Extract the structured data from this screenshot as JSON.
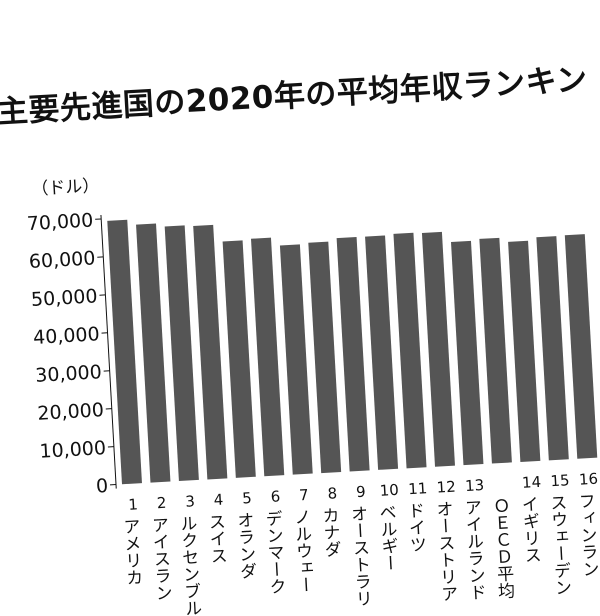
{
  "title": "主要先進国の2020年の平均年収ランキン",
  "unit_label": "（ドル）",
  "chart_data": {
    "type": "bar",
    "title": "主要先進国の2020年の平均年収ランキン",
    "ylabel": "（ドル）",
    "ylim": [
      0,
      70000
    ],
    "yticks": [
      "70,000",
      "60,000",
      "50,000",
      "40,000",
      "30,000",
      "20,000",
      "10,000",
      "0"
    ],
    "grid": false,
    "bar_color": "#555555",
    "categories": [
      {
        "rank": "1",
        "name": "アメリカ"
      },
      {
        "rank": "2",
        "name": "アイスラン"
      },
      {
        "rank": "3",
        "name": "ルクセンブル"
      },
      {
        "rank": "4",
        "name": "スイス"
      },
      {
        "rank": "5",
        "name": "オランダ"
      },
      {
        "rank": "6",
        "name": "デンマーク"
      },
      {
        "rank": "7",
        "name": "ノルウェー"
      },
      {
        "rank": "8",
        "name": "カナダ"
      },
      {
        "rank": "9",
        "name": "オーストラリ"
      },
      {
        "rank": "10",
        "name": "ベルギー"
      },
      {
        "rank": "11",
        "name": "ドイツ"
      },
      {
        "rank": "12",
        "name": "オーストリア"
      },
      {
        "rank": "13",
        "name": "アイルランド"
      },
      {
        "rank": "",
        "name": "ＯＥＣＤ平均"
      },
      {
        "rank": "14",
        "name": "イギリス"
      },
      {
        "rank": "15",
        "name": "スウェーデン"
      },
      {
        "rank": "16",
        "name": "フィンラン"
      }
    ],
    "values": [
      69400,
      68000,
      67100,
      66800,
      62300,
      62600,
      60400,
      60700,
      61500,
      61500,
      61800,
      61600,
      58800,
      59200,
      58000,
      58800,
      58900
    ]
  }
}
